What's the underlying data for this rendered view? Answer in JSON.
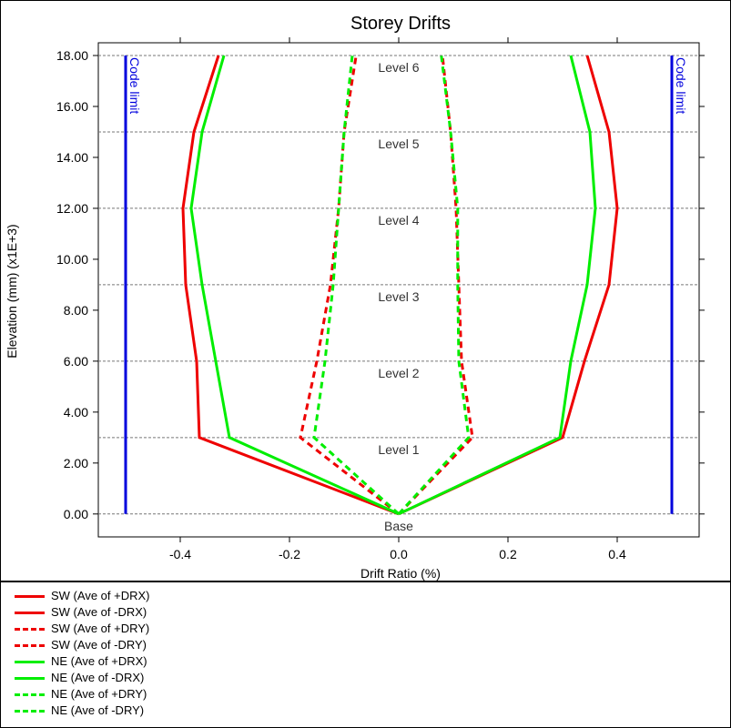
{
  "chart_data": {
    "type": "line",
    "title": "Storey Drifts",
    "xlabel": "Drift Ratio (%)",
    "ylabel": "Elevation (mm) (x1E+3)",
    "xlim": [
      -0.55,
      0.55
    ],
    "ylim": [
      -0.9,
      18.5
    ],
    "x_ticks": [
      -0.4,
      -0.2,
      0.0,
      0.2,
      0.4
    ],
    "x_tick_labels": [
      "-0.4",
      "-0.2",
      "0.0",
      "0.2",
      "0.4"
    ],
    "y_ticks": [
      0,
      2,
      4,
      6,
      8,
      10,
      12,
      14,
      16,
      18
    ],
    "y_tick_labels": [
      "0.00",
      "2.00",
      "4.00",
      "6.00",
      "8.00",
      "10.00",
      "12.00",
      "14.00",
      "16.00",
      "18.00"
    ],
    "levels": [
      {
        "name": "Base",
        "elevation": 0
      },
      {
        "name": "Level 1",
        "elevation": 3
      },
      {
        "name": "Level 2",
        "elevation": 6
      },
      {
        "name": "Level 3",
        "elevation": 9
      },
      {
        "name": "Level 4",
        "elevation": 12
      },
      {
        "name": "Level 5",
        "elevation": 15
      },
      {
        "name": "Level 6",
        "elevation": 18
      }
    ],
    "code_limit": {
      "label": "Code limit",
      "values": [
        -0.5,
        0.5
      ],
      "color": "#0000dd"
    },
    "series": [
      {
        "name": "SW (Ave of +DRX)",
        "color": "#ee0000",
        "dash": false,
        "x": [
          0.0,
          0.3,
          0.34,
          0.385,
          0.4,
          0.385,
          0.345
        ],
        "y": [
          0,
          3,
          6,
          9,
          12,
          15,
          18
        ]
      },
      {
        "name": "SW (Ave of -DRX)",
        "color": "#ee0000",
        "dash": false,
        "x": [
          0.0,
          -0.365,
          -0.37,
          -0.39,
          -0.395,
          -0.375,
          -0.33
        ],
        "y": [
          0,
          3,
          6,
          9,
          12,
          15,
          18
        ]
      },
      {
        "name": "SW (Ave of +DRY)",
        "color": "#ee0000",
        "dash": true,
        "x": [
          0.0,
          0.135,
          0.115,
          0.11,
          0.105,
          0.095,
          0.08
        ],
        "y": [
          0,
          3,
          6,
          9,
          12,
          15,
          18
        ]
      },
      {
        "name": "SW (Ave of -DRY)",
        "color": "#ee0000",
        "dash": true,
        "x": [
          0.0,
          -0.18,
          -0.15,
          -0.125,
          -0.11,
          -0.1,
          -0.078
        ],
        "y": [
          0,
          3,
          6,
          9,
          12,
          15,
          18
        ]
      },
      {
        "name": "NE (Ave of +DRX)",
        "color": "#00ee00",
        "dash": false,
        "x": [
          0.0,
          0.295,
          0.315,
          0.345,
          0.36,
          0.35,
          0.315
        ],
        "y": [
          0,
          3,
          6,
          9,
          12,
          15,
          18
        ]
      },
      {
        "name": "NE (Ave of -DRX)",
        "color": "#00ee00",
        "dash": false,
        "x": [
          0.0,
          -0.31,
          -0.335,
          -0.36,
          -0.38,
          -0.36,
          -0.32
        ],
        "y": [
          0,
          3,
          6,
          9,
          12,
          15,
          18
        ]
      },
      {
        "name": "NE (Ave of +DRY)",
        "color": "#00ee00",
        "dash": true,
        "x": [
          0.0,
          0.128,
          0.11,
          0.108,
          0.108,
          0.095,
          0.078
        ],
        "y": [
          0,
          3,
          6,
          9,
          12,
          15,
          18
        ]
      },
      {
        "name": "NE (Ave of -DRY)",
        "color": "#00ee00",
        "dash": true,
        "x": [
          0.0,
          -0.155,
          -0.135,
          -0.12,
          -0.11,
          -0.1,
          -0.085
        ],
        "y": [
          0,
          3,
          6,
          9,
          12,
          15,
          18
        ]
      }
    ]
  }
}
